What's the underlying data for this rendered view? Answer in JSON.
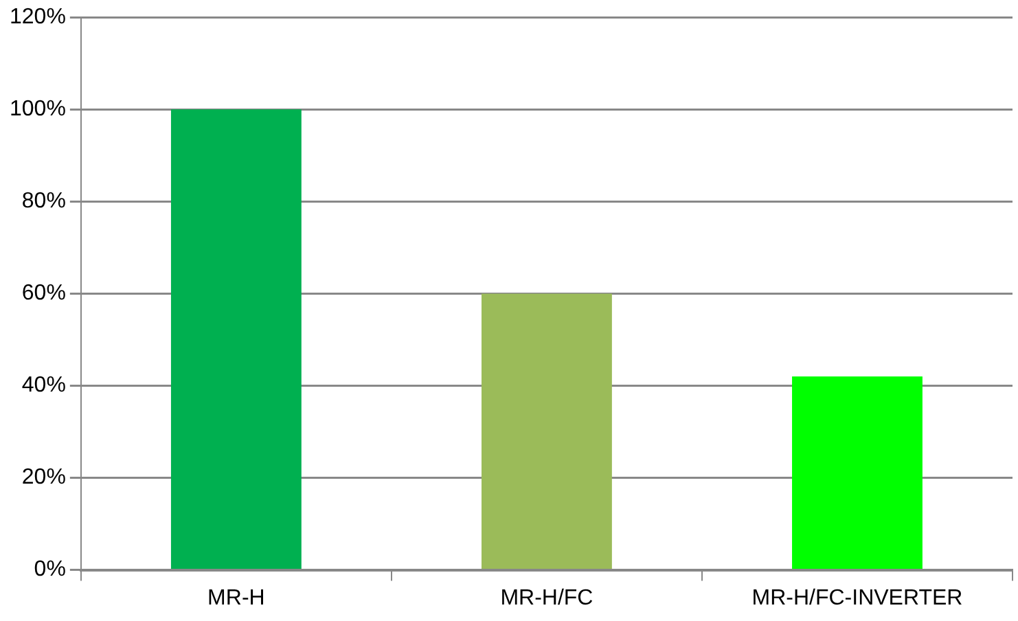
{
  "chart_data": {
    "type": "bar",
    "categories": [
      "MR-H",
      "MR-H/FC",
      "MR-H/FC-INVERTER"
    ],
    "values": [
      100,
      60,
      42
    ],
    "colors": [
      "#00b050",
      "#9bbb59",
      "#00ff00"
    ],
    "ylim": [
      0,
      120
    ],
    "yticks": [
      {
        "value": 0,
        "label": "0%"
      },
      {
        "value": 20,
        "label": "20%"
      },
      {
        "value": 40,
        "label": "40%"
      },
      {
        "value": 60,
        "label": "60%"
      },
      {
        "value": 80,
        "label": "80%"
      },
      {
        "value": 100,
        "label": "100%"
      },
      {
        "value": 120,
        "label": "120%"
      }
    ],
    "grid": "y",
    "legend": false
  }
}
